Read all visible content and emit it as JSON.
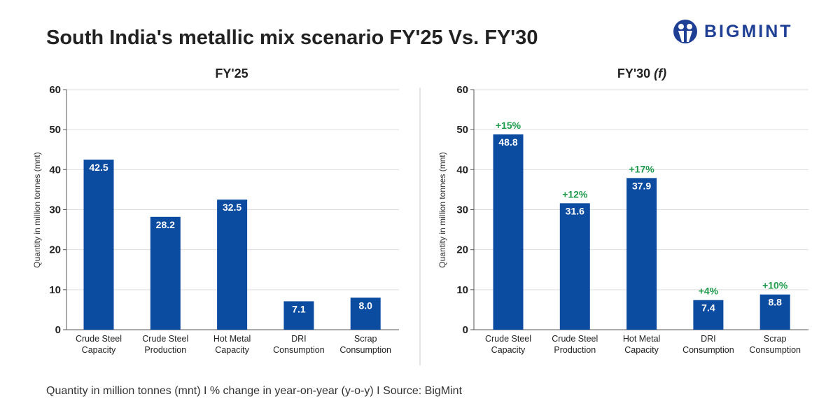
{
  "title": "South India's metallic mix scenario FY'25 Vs. FY'30",
  "logo": {
    "text": "BIGMINT"
  },
  "footer": "Quantity in million tonnes (mnt)  I  % change in year-on-year (y-o-y)  I  Source: BigMint",
  "colors": {
    "bar": "#0b4ba0",
    "change": "#1e9a4c",
    "grid": "#dddddd"
  },
  "chart_data": [
    {
      "type": "bar",
      "title": "FY'25",
      "ylabel": "Quantity in million tonnes (mnt)",
      "ylim": [
        0,
        60
      ],
      "yticks": [
        0,
        10,
        20,
        30,
        40,
        50,
        60
      ],
      "grid": true,
      "categories": [
        [
          "Crude Steel",
          "Capacity"
        ],
        [
          "Crude Steel",
          "Production"
        ],
        [
          "Hot Metal",
          "Capacity"
        ],
        [
          "DRI",
          "Consumption"
        ],
        [
          "Scrap",
          "Consumption"
        ]
      ],
      "values": [
        42.5,
        28.2,
        32.5,
        7.1,
        8.0
      ],
      "labels": [
        "42.5",
        "28.2",
        "32.5",
        "7.1",
        "8.0"
      ]
    },
    {
      "type": "bar",
      "title": "FY'30",
      "title_suffix": "(f)",
      "ylabel": "Quantity in million tonnes (mnt)",
      "ylim": [
        0,
        60
      ],
      "yticks": [
        0,
        10,
        20,
        30,
        40,
        50,
        60
      ],
      "grid": true,
      "categories": [
        [
          "Crude Steel",
          "Capacity"
        ],
        [
          "Crude Steel",
          "Production"
        ],
        [
          "Hot Metal",
          "Capacity"
        ],
        [
          "DRI",
          "Consumption"
        ],
        [
          "Scrap",
          "Consumption"
        ]
      ],
      "values": [
        48.8,
        31.6,
        37.9,
        7.4,
        8.8
      ],
      "labels": [
        "48.8",
        "31.6",
        "37.9",
        "7.4",
        "8.8"
      ],
      "changes": [
        "+15%",
        "+12%",
        "+17%",
        "+4%",
        "+10%"
      ]
    }
  ]
}
